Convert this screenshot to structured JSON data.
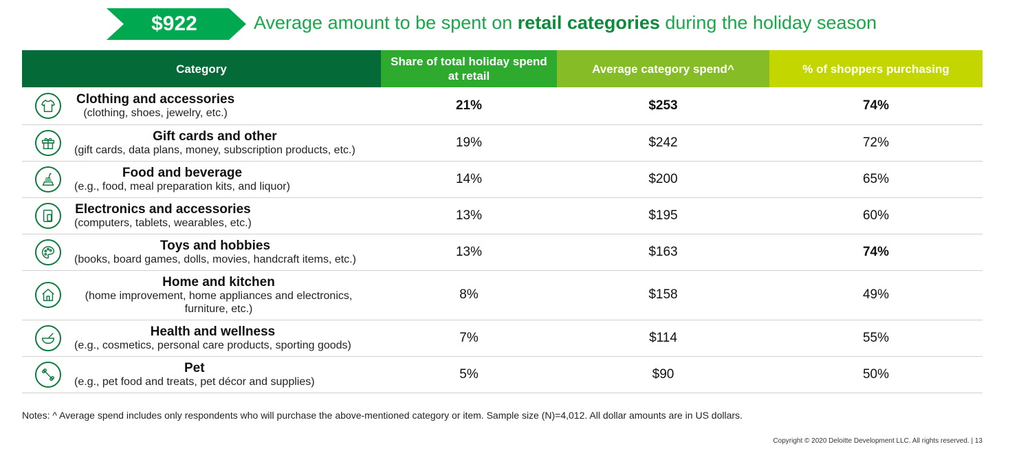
{
  "banner": {
    "amount": "$922",
    "headline_pre": "Average amount to be spent on ",
    "headline_bold": "retail categories",
    "headline_post": " during the holiday season",
    "colors": {
      "badge": "#00a94f",
      "headline": "#1aa64a"
    }
  },
  "table": {
    "headers": {
      "category": "Category",
      "share": "Share of total holiday spend at retail",
      "avg_spend": "Average category spend^",
      "pct_shoppers": "% of shoppers purchasing"
    },
    "header_colors": [
      "#046a38",
      "#2eaa2f",
      "#86bc25",
      "#c4d600"
    ],
    "rows": [
      {
        "icon": "shirt-icon",
        "name": "Clothing and accessories",
        "desc": "(clothing, shoes, jewelry, etc.)",
        "share": "21%",
        "avg": "$253",
        "pct": "74%"
      },
      {
        "icon": "gift-icon",
        "name": "Gift cards and other",
        "desc": "(gift cards, data plans, money, subscription products, etc.)",
        "share": "19%",
        "avg": "$242",
        "pct": "72%"
      },
      {
        "icon": "food-icon",
        "name": "Food and beverage",
        "desc": "(e.g., food, meal preparation kits, and liquor)",
        "share": "14%",
        "avg": "$200",
        "pct": "65%"
      },
      {
        "icon": "devices-icon",
        "name": "Electronics and accessories",
        "desc": "(computers, tablets, wearables, etc.)",
        "share": "13%",
        "avg": "$195",
        "pct": "60%"
      },
      {
        "icon": "palette-icon",
        "name": "Toys and hobbies",
        "desc": "(books, board games, dolls, movies, handcraft items, etc.)",
        "share": "13%",
        "avg": "$163",
        "pct": "74%"
      },
      {
        "icon": "house-icon",
        "name": "Home and kitchen",
        "desc": "(home improvement, home appliances and electronics, furniture, etc.)",
        "share": "8%",
        "avg": "$158",
        "pct": "49%"
      },
      {
        "icon": "mortar-pestle-icon",
        "name": "Health and wellness",
        "desc": "(e.g., cosmetics, personal care products, sporting goods)",
        "share": "7%",
        "avg": "$114",
        "pct": "55%"
      },
      {
        "icon": "bone-icon",
        "name": "Pet",
        "desc": "(e.g., pet food and treats, pet décor and supplies)",
        "share": "5%",
        "avg": "$90",
        "pct": "50%"
      }
    ]
  },
  "notes": "Notes: ^ Average spend includes only respondents who will purchase the above-mentioned category or item. Sample size (N)=4,012. All dollar amounts are in US dollars.",
  "copyright": "Copyright © 2020 Deloitte Development LLC. All rights reserved.   |   13"
}
